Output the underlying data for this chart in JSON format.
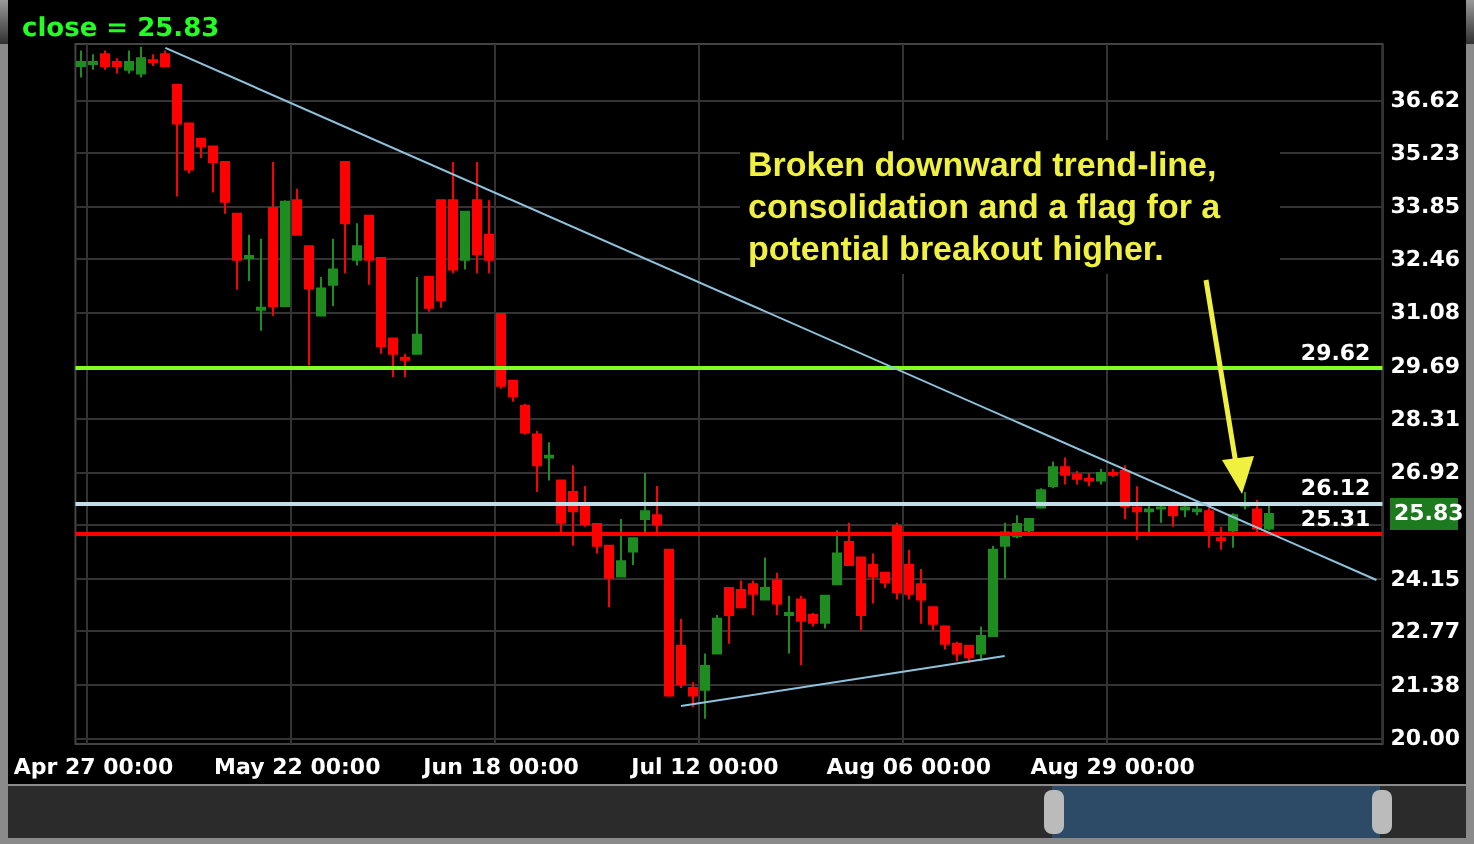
{
  "chart_data": {
    "type": "candlestick",
    "title": "close = 25.83",
    "categories": [
      null,
      "Apr 27 00:00",
      null,
      null,
      null,
      null,
      null,
      null,
      null,
      null,
      null,
      null,
      null,
      null,
      null,
      null,
      null,
      null,
      "May 22 00:00",
      null,
      null,
      null,
      null,
      null,
      null,
      null,
      null,
      null,
      null,
      null,
      null,
      null,
      null,
      null,
      null,
      "Jun 18 00:00",
      null,
      null,
      null,
      null,
      null,
      null,
      null,
      null,
      null,
      null,
      null,
      null,
      null,
      null,
      null,
      null,
      "Jul 12 00:00",
      null,
      null,
      null,
      null,
      null,
      null,
      null,
      null,
      null,
      null,
      null,
      null,
      null,
      null,
      null,
      null,
      "Aug 06 00:00",
      null,
      null,
      null,
      null,
      null,
      null,
      null,
      null,
      null,
      null,
      null,
      null,
      null,
      null,
      null,
      null,
      "Aug 29 00:00",
      null,
      null,
      null,
      null,
      null,
      null,
      null,
      null,
      null,
      null,
      null,
      null,
      null,
      null,
      null,
      null,
      null,
      null,
      null,
      null,
      null,
      null
    ],
    "ohlc": [
      [
        37.5,
        37.9,
        37.2,
        37.6
      ],
      [
        37.55,
        37.8,
        37.4,
        37.6
      ],
      [
        37.8,
        37.9,
        37.4,
        37.5
      ],
      [
        37.6,
        37.7,
        37.3,
        37.5
      ],
      [
        37.4,
        37.9,
        37.3,
        37.6
      ],
      [
        37.3,
        38.0,
        37.2,
        37.7
      ],
      [
        37.65,
        37.8,
        37.5,
        37.6
      ],
      [
        37.8,
        37.9,
        37.5,
        37.5
      ],
      [
        37.0,
        37.0,
        34.1,
        36.0
      ],
      [
        36.0,
        36.0,
        34.7,
        34.8
      ],
      [
        35.6,
        35.6,
        35.1,
        35.4
      ],
      [
        35.4,
        35.4,
        34.2,
        35.0
      ],
      [
        35.0,
        35.0,
        33.65,
        33.96
      ],
      [
        33.65,
        33.65,
        31.67,
        32.45
      ],
      [
        32.5,
        33.1,
        31.9,
        32.55
      ],
      [
        31.15,
        33.0,
        30.6,
        31.2
      ],
      [
        33.8,
        35.0,
        30.99,
        31.25
      ],
      [
        31.25,
        34.0,
        31.25,
        33.96
      ],
      [
        34.0,
        34.3,
        33.1,
        33.1
      ],
      [
        32.8,
        32.8,
        29.7,
        31.7
      ],
      [
        31.0,
        32.0,
        31.0,
        31.7
      ],
      [
        31.8,
        33.0,
        31.25,
        32.2
      ],
      [
        35.0,
        35.0,
        32.1,
        33.4
      ],
      [
        32.45,
        33.4,
        32.3,
        32.8
      ],
      [
        33.6,
        33.6,
        31.8,
        32.45
      ],
      [
        32.5,
        32.5,
        30.0,
        30.2
      ],
      [
        30.4,
        30.4,
        29.4,
        30.0
      ],
      [
        29.9,
        30.0,
        29.4,
        29.85
      ],
      [
        30.0,
        32.0,
        30.0,
        30.5
      ],
      [
        32.0,
        32.0,
        31.1,
        31.2
      ],
      [
        34.0,
        34.0,
        31.2,
        31.4
      ],
      [
        34.0,
        35.0,
        32.1,
        32.2
      ],
      [
        32.45,
        33.7,
        32.2,
        33.7
      ],
      [
        34.0,
        35.0,
        32.1,
        32.6
      ],
      [
        33.1,
        34.0,
        32.1,
        32.45
      ],
      [
        31.04,
        31.04,
        29.1,
        29.17
      ],
      [
        29.3,
        29.3,
        28.75,
        28.9
      ],
      [
        28.65,
        28.7,
        27.9,
        27.95
      ],
      [
        27.9,
        28.0,
        26.4,
        27.1
      ],
      [
        27.3,
        27.7,
        26.7,
        27.35
      ],
      [
        26.7,
        26.7,
        25.3,
        25.6
      ],
      [
        26.4,
        27.1,
        25.0,
        25.9
      ],
      [
        26.1,
        26.56,
        25.5,
        25.57
      ],
      [
        25.57,
        25.57,
        24.8,
        25.0
      ],
      [
        25.0,
        25.0,
        23.4,
        24.17
      ],
      [
        24.2,
        25.7,
        24.2,
        24.6
      ],
      [
        24.85,
        25.2,
        24.5,
        25.2
      ],
      [
        25.7,
        26.9,
        25.25,
        25.9
      ],
      [
        25.8,
        26.56,
        25.25,
        25.57
      ],
      [
        24.9,
        24.9,
        21.1,
        21.1
      ],
      [
        22.4,
        23.1,
        21.3,
        21.4
      ],
      [
        21.3,
        21.45,
        20.8,
        21.1
      ],
      [
        21.25,
        22.2,
        20.5,
        21.87
      ],
      [
        22.2,
        23.2,
        22.2,
        23.1
      ],
      [
        23.9,
        23.9,
        22.45,
        23.2
      ],
      [
        23.85,
        24.1,
        23.4,
        23.4
      ],
      [
        24.0,
        24.1,
        23.2,
        23.75
      ],
      [
        23.6,
        24.7,
        23.6,
        23.9
      ],
      [
        24.1,
        24.3,
        23.2,
        23.5
      ],
      [
        23.2,
        23.7,
        22.2,
        23.25
      ],
      [
        23.6,
        23.7,
        21.9,
        23.05
      ],
      [
        23.2,
        23.25,
        22.9,
        23.0
      ],
      [
        23.0,
        23.7,
        22.85,
        23.7
      ],
      [
        24.0,
        25.4,
        24.0,
        24.8
      ],
      [
        25.1,
        25.6,
        24.5,
        24.5
      ],
      [
        24.7,
        24.7,
        22.8,
        23.2
      ],
      [
        24.5,
        24.8,
        23.5,
        24.2
      ],
      [
        24.3,
        24.3,
        23.9,
        24.05
      ],
      [
        25.52,
        25.6,
        23.6,
        23.8
      ],
      [
        24.5,
        24.9,
        23.6,
        23.75
      ],
      [
        24.0,
        24.4,
        22.97,
        23.6
      ],
      [
        23.4,
        23.4,
        22.8,
        22.97
      ],
      [
        22.9,
        22.9,
        22.3,
        22.45
      ],
      [
        22.45,
        22.5,
        22.0,
        22.2
      ],
      [
        22.4,
        22.4,
        21.95,
        22.1
      ],
      [
        22.2,
        22.9,
        22.0,
        22.65
      ],
      [
        22.65,
        25.0,
        22.65,
        24.9
      ],
      [
        25.0,
        25.6,
        24.15,
        25.35
      ],
      [
        25.25,
        25.8,
        25.2,
        25.57
      ],
      [
        25.4,
        25.7,
        25.3,
        25.7
      ],
      [
        26.0,
        26.5,
        26.0,
        26.45
      ],
      [
        26.56,
        27.2,
        26.5,
        27.05
      ],
      [
        27.05,
        27.3,
        26.6,
        26.85
      ],
      [
        26.85,
        26.95,
        26.6,
        26.75
      ],
      [
        26.75,
        26.9,
        26.55,
        26.7
      ],
      [
        26.7,
        27.0,
        26.6,
        26.9
      ],
      [
        26.9,
        27.0,
        26.8,
        26.85
      ],
      [
        26.95,
        27.1,
        25.7,
        26.04
      ],
      [
        26.0,
        26.55,
        25.15,
        25.9
      ],
      [
        25.9,
        26.1,
        25.3,
        25.95
      ],
      [
        25.97,
        26.1,
        25.6,
        26.0
      ],
      [
        26.1,
        26.15,
        25.5,
        25.8
      ],
      [
        25.95,
        26.15,
        25.75,
        26.0
      ],
      [
        25.9,
        26.05,
        25.8,
        25.95
      ],
      [
        25.9,
        26.0,
        24.95,
        25.4
      ],
      [
        25.2,
        25.5,
        24.9,
        25.15
      ],
      [
        25.4,
        25.85,
        24.95,
        25.8
      ],
      [
        26.05,
        26.4,
        25.95,
        26.1
      ],
      [
        25.95,
        26.2,
        25.3,
        25.45
      ],
      [
        25.45,
        26.1,
        25.4,
        25.83
      ],
      null,
      null,
      null,
      null,
      null,
      null,
      null,
      null,
      null
    ],
    "colors": [
      "#1e8c1e",
      "#1e8c1e",
      "#ff0000",
      "#ff0000",
      "#1e8c1e",
      "#1e8c1e",
      "#ff0000",
      "#ff0000",
      "#ff0000",
      "#ff0000",
      "#ff0000",
      "#ff0000",
      "#ff0000",
      "#ff0000",
      "#1e8c1e",
      "#1e8c1e",
      "#ff0000",
      "#1e8c1e",
      "#ff0000",
      "#ff0000",
      "#1e8c1e",
      "#1e8c1e",
      "#ff0000",
      "#1e8c1e",
      "#ff0000",
      "#ff0000",
      "#ff0000",
      "#ff0000",
      "#1e8c1e",
      "#ff0000",
      "#ff0000",
      "#ff0000",
      "#1e8c1e",
      "#ff0000",
      "#ff0000",
      "#ff0000",
      "#ff0000",
      "#ff0000",
      "#ff0000",
      "#1e8c1e",
      "#ff0000",
      "#ff0000",
      "#ff0000",
      "#ff0000",
      "#ff0000",
      "#1e8c1e",
      "#1e8c1e",
      "#1e8c1e",
      "#ff0000",
      "#ff0000",
      "#ff0000",
      "#ff0000",
      "#1e8c1e",
      "#1e8c1e",
      "#ff0000",
      "#ff0000",
      "#ff0000",
      "#1e8c1e",
      "#ff0000",
      "#1e8c1e",
      "#ff0000",
      "#ff0000",
      "#1e8c1e",
      "#1e8c1e",
      "#ff0000",
      "#ff0000",
      "#ff0000",
      "#ff0000",
      "#ff0000",
      "#ff0000",
      "#ff0000",
      "#ff0000",
      "#ff0000",
      "#ff0000",
      "#ff0000",
      "#1e8c1e",
      "#1e8c1e",
      "#1e8c1e",
      "#1e8c1e",
      "#1e8c1e",
      "#1e8c1e",
      "#1e8c1e",
      "#ff0000",
      "#ff0000",
      "#ff0000",
      "#1e8c1e",
      "#ff0000",
      "#ff0000",
      "#ff0000",
      "#1e8c1e",
      "#1e8c1e",
      "#ff0000",
      "#1e8c1e",
      "#1e8c1e",
      "#ff0000",
      "#ff0000",
      "#1e8c1e",
      "#1e8c1e",
      "#ff0000",
      "#1e8c1e",
      null,
      null,
      null,
      null,
      null,
      null,
      null,
      null,
      null
    ],
    "series": [
      {
        "type": "line",
        "color": "#8fc3dc",
        "values": [
          null,
          null,
          null,
          null,
          null,
          null,
          null,
          37.97,
          null,
          null,
          null,
          null,
          null,
          null,
          null,
          null,
          null,
          null,
          null,
          null,
          null,
          null,
          null,
          null,
          null,
          null,
          null,
          null,
          null,
          null,
          null,
          null,
          null,
          null,
          null,
          null,
          null,
          null,
          null,
          null,
          null,
          null,
          null,
          null,
          null,
          null,
          null,
          null,
          null,
          null,
          null,
          null,
          null,
          null,
          null,
          null,
          null,
          null,
          null,
          null,
          null,
          null,
          null,
          null,
          null,
          null,
          null,
          null,
          null,
          null,
          null,
          null,
          null,
          null,
          null,
          null,
          null,
          null,
          null,
          null,
          null,
          null,
          null,
          null,
          null,
          null,
          null,
          null,
          null,
          null,
          null,
          null,
          null,
          null,
          null,
          null,
          null,
          null,
          null,
          null,
          null,
          null,
          null,
          null,
          null,
          null,
          null,
          null,
          24.11
        ]
      },
      {
        "type": "line",
        "color": "#8fc3dc",
        "values": [
          null,
          null,
          null,
          null,
          null,
          null,
          null,
          null,
          null,
          null,
          null,
          null,
          null,
          null,
          null,
          null,
          null,
          null,
          null,
          null,
          null,
          null,
          null,
          null,
          null,
          null,
          null,
          null,
          null,
          null,
          null,
          null,
          null,
          null,
          null,
          null,
          null,
          null,
          null,
          null,
          null,
          null,
          null,
          null,
          null,
          null,
          null,
          null,
          null,
          null,
          20.83,
          null,
          null,
          null,
          null,
          null,
          null,
          null,
          null,
          null,
          null,
          null,
          null,
          null,
          null,
          null,
          null,
          null,
          null,
          null,
          null,
          null,
          null,
          null,
          null,
          null,
          null,
          22.13,
          null,
          null,
          null,
          null,
          null,
          null,
          null,
          null,
          null,
          null,
          null,
          null,
          null,
          null,
          null,
          null,
          null,
          null,
          null,
          null,
          null,
          null,
          null,
          null,
          null,
          null,
          null,
          null,
          null,
          null,
          null
        ]
      }
    ],
    "ylim": [
      19.84,
      38.07
    ],
    "yticks": [
      {
        "value": 20,
        "label": "20.00"
      },
      21.38,
      22.77,
      24.15,
      {
        "value": 25.54,
        "label": null
      },
      26.92,
      28.31,
      29.69,
      31.08,
      32.46,
      33.85,
      35.23,
      36.62
    ],
    "ref_lines": [
      {
        "axis": "y",
        "value": 29.62,
        "label": "29.62",
        "color": "#80ff20"
      },
      {
        "axis": "y",
        "value": 26.12,
        "label": "26.12",
        "color": "#c0dde8"
      },
      {
        "axis": "y",
        "value": 25.31,
        "label": "25.31",
        "color": "#ff0000"
      }
    ],
    "annotations": [
      "Broken downward trend-line, consolidation and a flag for a potential breakout higher.",
      "25.83"
    ],
    "grid": true
  }
}
